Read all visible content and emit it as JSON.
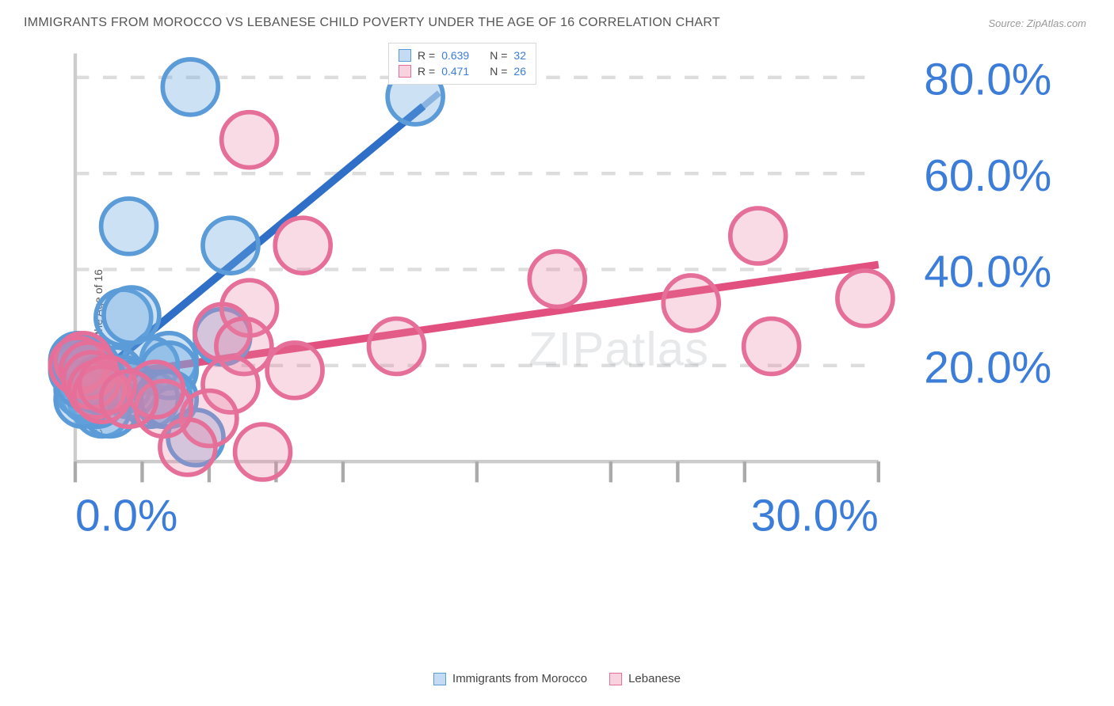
{
  "title": "IMMIGRANTS FROM MOROCCO VS LEBANESE CHILD POVERTY UNDER THE AGE OF 16 CORRELATION CHART",
  "source": "Source: ZipAtlas.com",
  "ylabel": "Child Poverty Under the Age of 16",
  "watermark": "ZIPatlas",
  "chart": {
    "type": "scatter",
    "background_color": "#ffffff",
    "grid_color": "#dddddd",
    "axis_color": "#cccccc",
    "marker_radius": 8,
    "xlim": [
      0,
      30
    ],
    "ylim": [
      0,
      85
    ],
    "x_ticks": [
      0,
      2.5,
      5,
      7.5,
      10,
      15,
      20,
      22.5,
      25,
      30
    ],
    "x_tick_labels": {
      "0": "0.0%",
      "30": "30.0%"
    },
    "y_ticks": [
      20,
      40,
      60,
      80
    ],
    "series": [
      {
        "name": "Immigrants from Morocco",
        "color_fill": "rgba(108,168,224,0.35)",
        "color_stroke": "#5a9bd8",
        "trend_color": "#2f6fc7",
        "R": 0.639,
        "N": 32,
        "trend": {
          "x1": 0,
          "y1": 14,
          "x2": 13,
          "y2": 74
        },
        "trend_dash": {
          "x1": 13,
          "y1": 74,
          "x2": 14.5,
          "y2": 81
        },
        "points": [
          [
            4.3,
            78
          ],
          [
            12.7,
            76
          ],
          [
            2.0,
            49
          ],
          [
            5.8,
            45
          ],
          [
            1.8,
            30
          ],
          [
            2.1,
            30.5
          ],
          [
            5.5,
            26
          ],
          [
            3.5,
            21
          ],
          [
            2.8,
            20
          ],
          [
            3.5,
            19
          ],
          [
            0.3,
            20
          ],
          [
            0.5,
            20
          ],
          [
            0.1,
            19
          ],
          [
            0.5,
            18
          ],
          [
            1.5,
            18
          ],
          [
            1.8,
            16
          ],
          [
            2.0,
            15
          ],
          [
            2.8,
            13
          ],
          [
            3.3,
            13
          ],
          [
            3.5,
            13
          ],
          [
            1.0,
            11
          ],
          [
            1.3,
            11
          ],
          [
            0.8,
            13
          ],
          [
            0.5,
            14
          ],
          [
            0.3,
            15
          ],
          [
            0.3,
            13
          ],
          [
            4.5,
            5
          ],
          [
            0.3,
            17
          ],
          [
            0.1,
            21
          ],
          [
            0.2,
            20.5
          ],
          [
            0.6,
            19.5
          ],
          [
            0.9,
            16
          ]
        ]
      },
      {
        "name": "Lebanese",
        "color_fill": "rgba(235,125,160,0.28)",
        "color_stroke": "#e56f99",
        "trend_color": "#e1507e",
        "R": 0.471,
        "N": 26,
        "trend": {
          "x1": 0,
          "y1": 17,
          "x2": 30,
          "y2": 41
        },
        "points": [
          [
            6.5,
            67
          ],
          [
            8.5,
            45
          ],
          [
            25.5,
            47
          ],
          [
            29.5,
            34
          ],
          [
            18,
            38
          ],
          [
            23,
            33
          ],
          [
            26,
            24
          ],
          [
            12,
            24
          ],
          [
            6.5,
            32
          ],
          [
            5.5,
            27
          ],
          [
            6.3,
            24
          ],
          [
            8.2,
            19
          ],
          [
            5.8,
            16
          ],
          [
            5.0,
            9
          ],
          [
            7.0,
            2
          ],
          [
            4.2,
            3
          ],
          [
            3.3,
            11
          ],
          [
            3.0,
            15
          ],
          [
            0.3,
            21
          ],
          [
            0.1,
            20
          ],
          [
            0.5,
            19
          ],
          [
            0.6,
            17
          ],
          [
            0.8,
            15
          ],
          [
            1.0,
            14
          ],
          [
            1.2,
            16
          ],
          [
            2.0,
            13
          ]
        ]
      }
    ]
  },
  "stats_box": {
    "rows": [
      {
        "swatch": "blue",
        "r_label": "R =",
        "r_val": "0.639",
        "n_label": "N =",
        "n_val": "32"
      },
      {
        "swatch": "pink",
        "r_label": "R =",
        "r_val": "0.471",
        "n_label": "N =",
        "n_val": "26"
      }
    ]
  },
  "legend": {
    "items": [
      {
        "swatch": "blue",
        "label": "Immigrants from Morocco"
      },
      {
        "swatch": "pink",
        "label": "Lebanese"
      }
    ]
  }
}
